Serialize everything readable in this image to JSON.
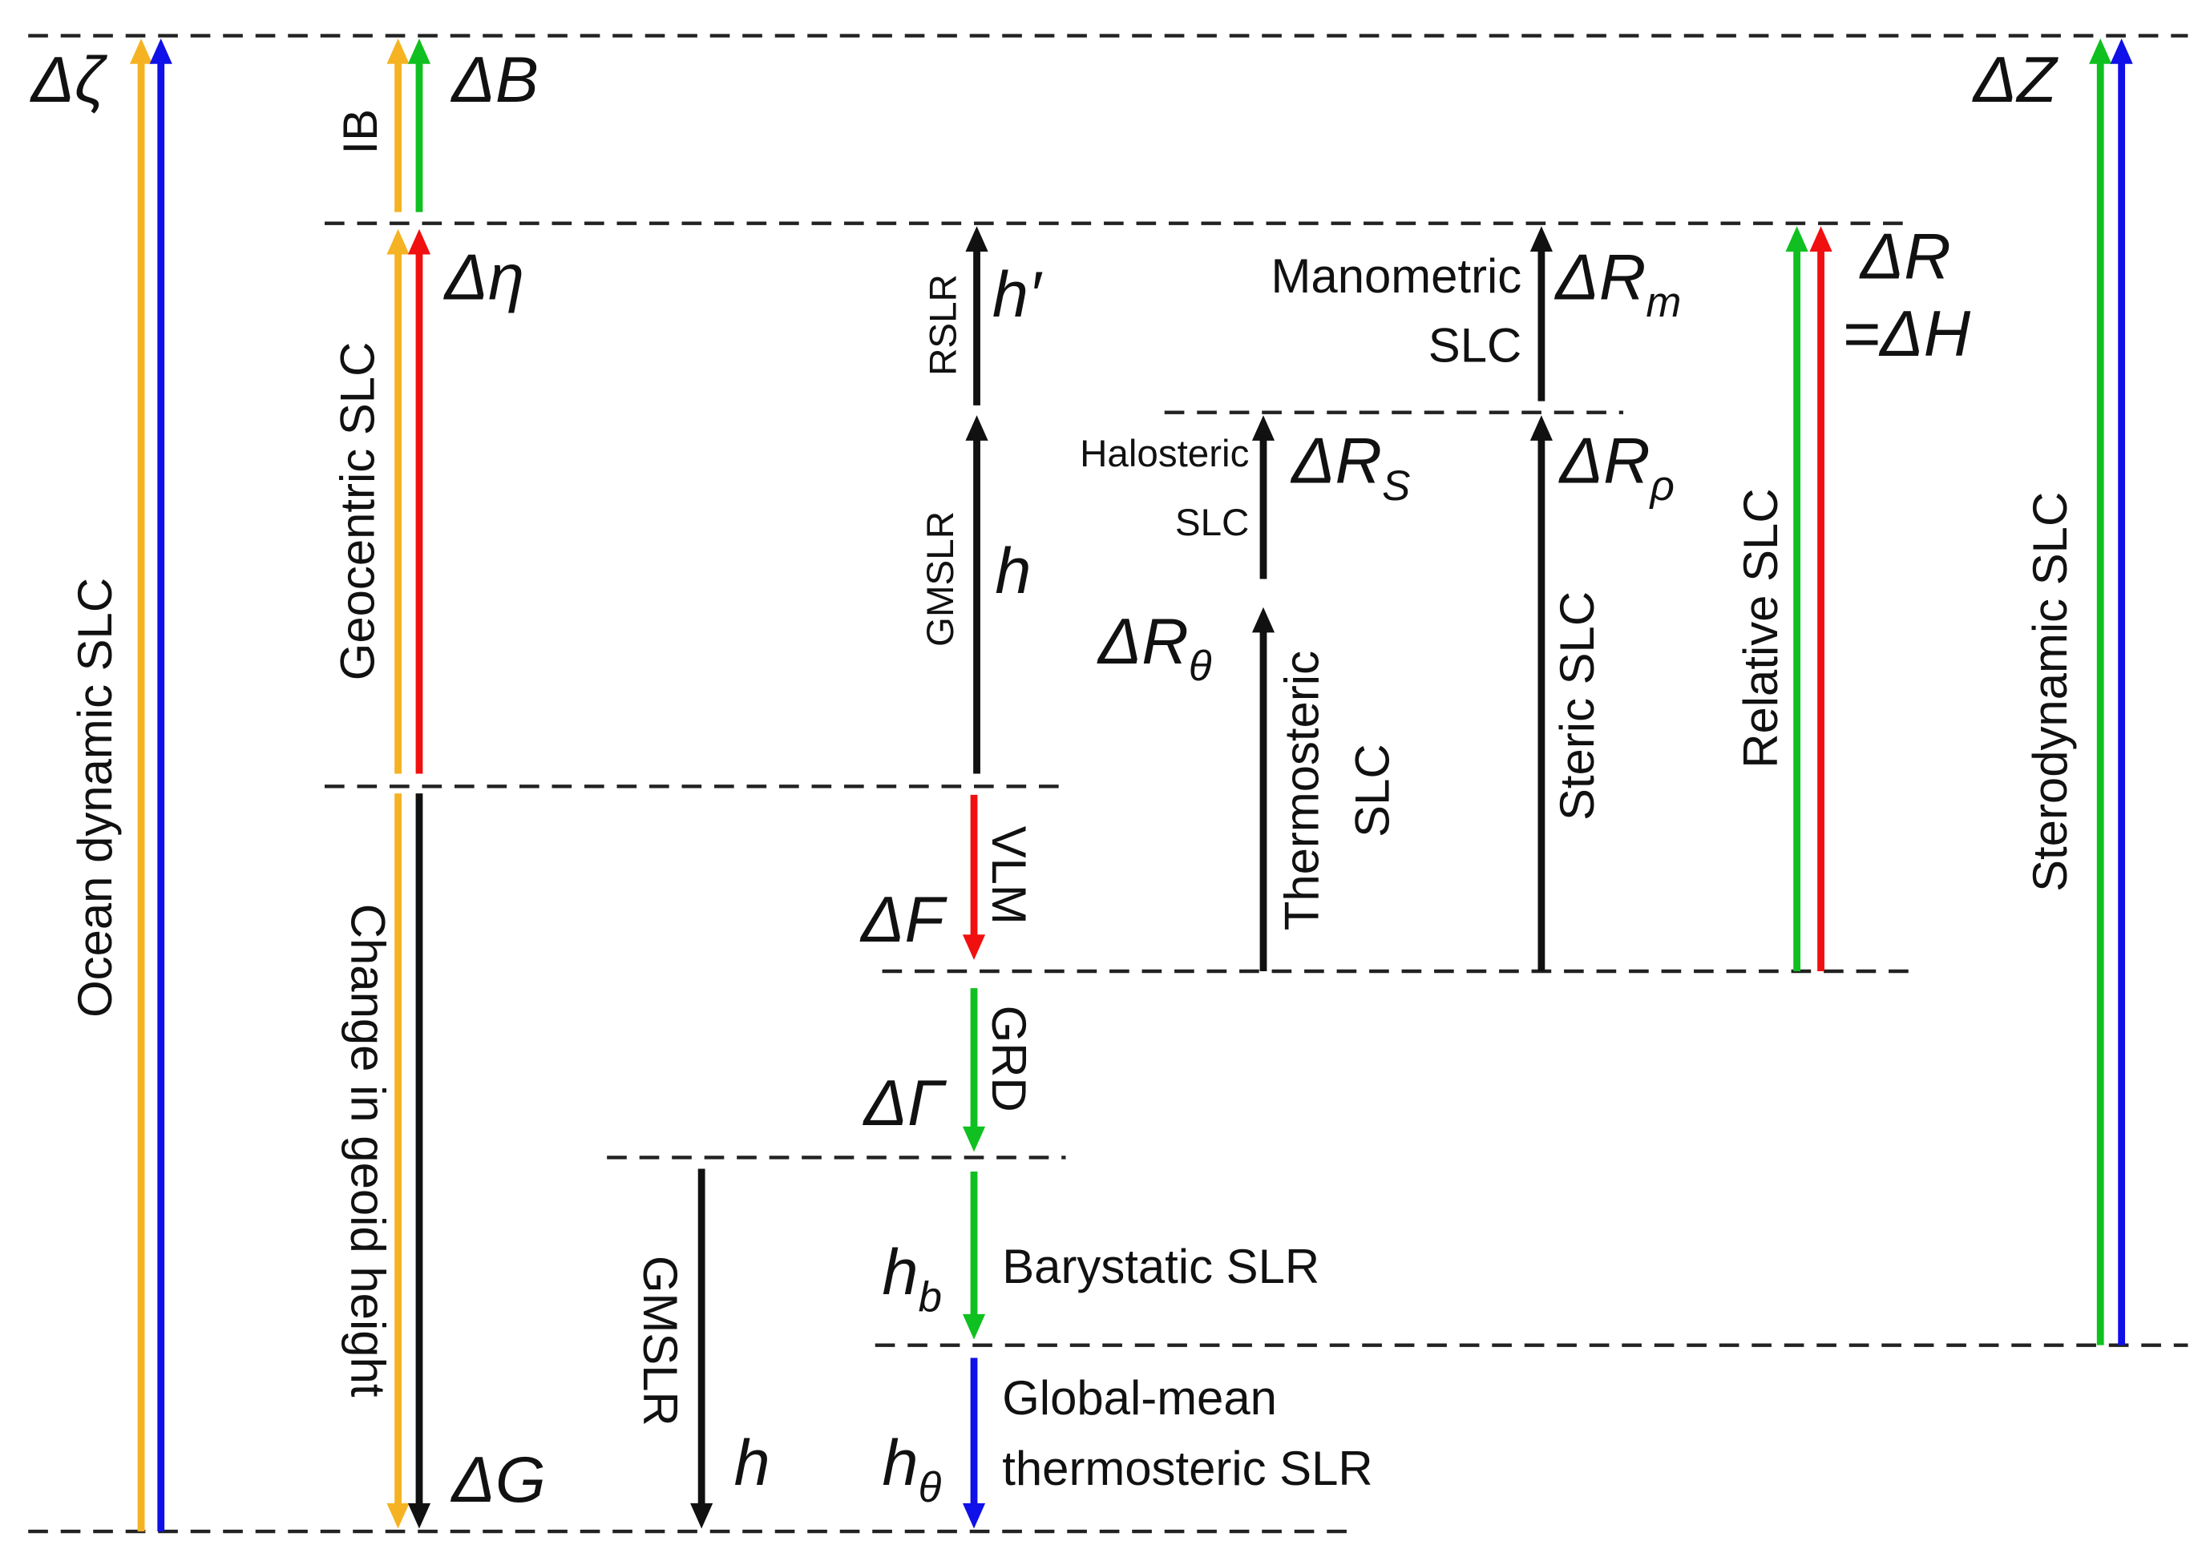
{
  "labels": {
    "ocean_dynamic": "Ocean dynamic SLC",
    "ib": "IB",
    "geocentric": "Geocentric SLC",
    "geoid": "Change in geoid height",
    "gmslr_left": "GMSLR",
    "rslr": "RSLR",
    "gmslr_mid": "GMSLR",
    "vlm": "VLM",
    "grd": "GRD",
    "barystatic": "Barystatic SLR",
    "global_mean_1": "Global-mean",
    "global_mean_2": "thermosteric SLR",
    "manometric_1": "Manometric",
    "manometric_2": "SLC",
    "halosteric_1": "Halosteric",
    "halosteric_2": "SLC",
    "thermosteric_1": "Thermosteric",
    "thermosteric_2": "SLC",
    "steric": "Steric SLC",
    "relative": "Relative SLC",
    "sterodynamic": "Sterodynamic SLC"
  },
  "symbols": {
    "dzeta": {
      "main": "Δζ"
    },
    "dB": {
      "main": "ΔB"
    },
    "deta": {
      "main": "Δη"
    },
    "dG": {
      "main": "ΔG"
    },
    "h_left": {
      "main": "h"
    },
    "h_prime": {
      "main": "h′"
    },
    "h_mid": {
      "main": "h"
    },
    "dF": {
      "main": "ΔF"
    },
    "dGamma": {
      "main": "ΔΓ"
    },
    "hb": {
      "main": "h",
      "sub": "b"
    },
    "htheta": {
      "main": "h",
      "sub": "θ"
    },
    "dRm": {
      "main": "ΔR",
      "sub": "m"
    },
    "dRS": {
      "main": "ΔR",
      "sub": "S"
    },
    "dRrho": {
      "main": "ΔR",
      "sub": "ρ"
    },
    "dRtheta": {
      "main": "ΔR",
      "sub": "θ"
    },
    "dR": {
      "main": "ΔR"
    },
    "dH": {
      "main": "=ΔH"
    },
    "dZ": {
      "main": "ΔZ"
    }
  }
}
